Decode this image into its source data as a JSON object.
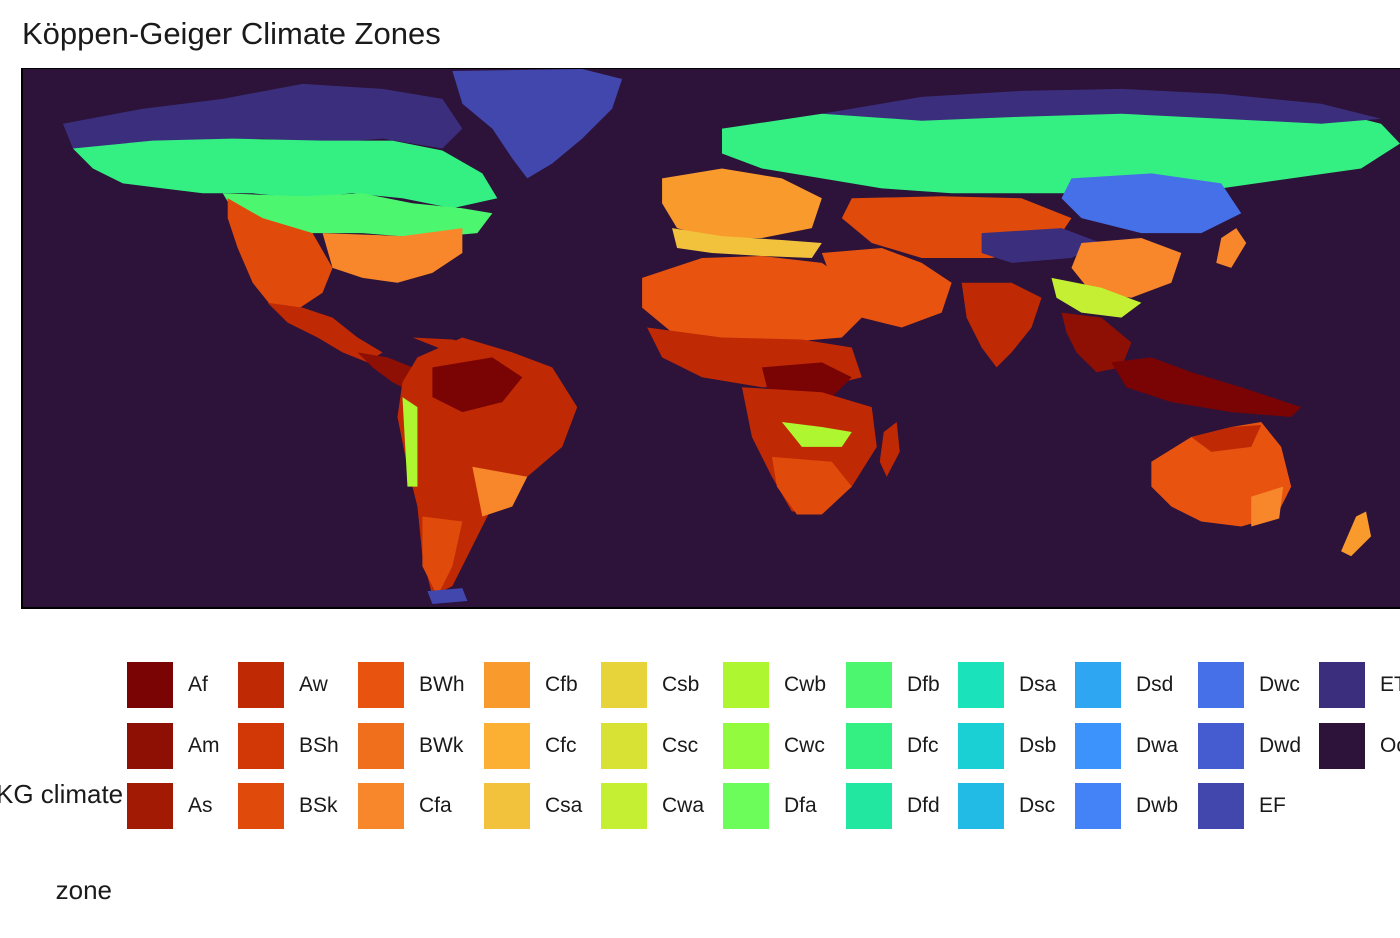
{
  "title": "Köppen-Geiger Climate Zones",
  "legend": {
    "title_line1": "KG climate",
    "title_line2": "zone",
    "columns": [
      [
        {
          "code": "Af",
          "color": "#7a0403"
        },
        {
          "code": "Am",
          "color": "#8e0f04"
        },
        {
          "code": "As",
          "color": "#a31a04"
        }
      ],
      [
        {
          "code": "Aw",
          "color": "#bf2a05"
        },
        {
          "code": "BSh",
          "color": "#d23805"
        },
        {
          "code": "BSk",
          "color": "#e04a0b"
        }
      ],
      [
        {
          "code": "BWh",
          "color": "#e8540f"
        },
        {
          "code": "BWk",
          "color": "#f06f1c"
        },
        {
          "code": "Cfa",
          "color": "#f8862a"
        }
      ],
      [
        {
          "code": "Cfb",
          "color": "#f99a2c"
        },
        {
          "code": "Cfc",
          "color": "#fbb034"
        },
        {
          "code": "Csa",
          "color": "#f2c23d"
        }
      ],
      [
        {
          "code": "Csb",
          "color": "#e6d43a"
        },
        {
          "code": "Csc",
          "color": "#d8e234"
        },
        {
          "code": "Cwa",
          "color": "#c5ef33"
        }
      ],
      [
        {
          "code": "Cwb",
          "color": "#aef630"
        },
        {
          "code": "Cwc",
          "color": "#92fb3d"
        },
        {
          "code": "Dfa",
          "color": "#6dfd5a"
        }
      ],
      [
        {
          "code": "Dfb",
          "color": "#4cf76f"
        },
        {
          "code": "Dfc",
          "color": "#34f083"
        },
        {
          "code": "Dfd",
          "color": "#22e7a0"
        }
      ],
      [
        {
          "code": "Dsa",
          "color": "#1ae2bb"
        },
        {
          "code": "Dsb",
          "color": "#1bd0d5"
        },
        {
          "code": "Dsc",
          "color": "#22bbe6"
        }
      ],
      [
        {
          "code": "Dsd",
          "color": "#2ea6f2"
        },
        {
          "code": "Dwa",
          "color": "#3b93fb"
        },
        {
          "code": "Dwb",
          "color": "#4482f7"
        }
      ],
      [
        {
          "code": "Dwc",
          "color": "#4670e8"
        },
        {
          "code": "Dwd",
          "color": "#455cd0"
        },
        {
          "code": "EF",
          "color": "#4147ad"
        }
      ],
      [
        {
          "code": "ET",
          "color": "#3b2f7d"
        },
        {
          "code": "Ocean",
          "color": "#2d1239"
        }
      ]
    ]
  },
  "map_colors": {
    "ocean": "#2d1239",
    "tundra": "#3b2f7d",
    "icecap": "#4147ad",
    "subarctic": "#34f083",
    "humid_continental": "#4cf76f",
    "humid_subtropical": "#f8862a",
    "desert": "#e8540f",
    "steppe": "#e04a0b",
    "savanna": "#bf2a05",
    "rainforest": "#7a0403",
    "monsoon": "#8e0f04",
    "oceanic": "#f99a2c",
    "mediterranean": "#f2c23d",
    "highland": "#aef630",
    "continental_dry_winter": "#4670e8"
  }
}
